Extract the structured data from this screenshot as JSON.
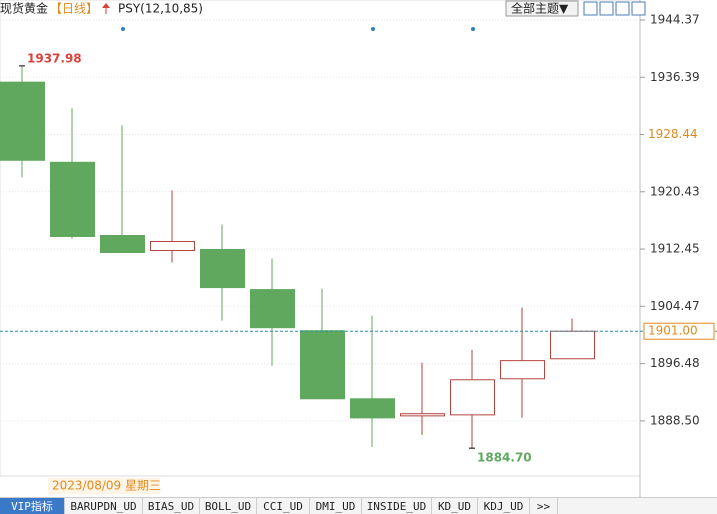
{
  "header": {
    "instrument": "现货黄金",
    "period": "【日线】",
    "indicator": "PSY(12,10,85)",
    "theme_button": "全部主题▼"
  },
  "chart_data": {
    "type": "candlestick",
    "categories": [
      null,
      null,
      null,
      null,
      null,
      null,
      null,
      null,
      null,
      null,
      null,
      null
    ],
    "open": [
      1935.71,
      1924.54,
      1914.34,
      1912.25,
      1912.39,
      1906.8,
      1901.07,
      1891.58,
      1889.2,
      1889.34,
      1894.37,
      1897.16
    ],
    "high": [
      1937.98,
      1932.08,
      1929.7,
      1920.63,
      1915.88,
      1911.13,
      1906.94,
      1903.17,
      1896.61,
      1898.42,
      1904.29,
      1902.75
    ],
    "low": [
      1922.44,
      1913.92,
      1911.97,
      1910.57,
      1902.47,
      1896.19,
      1891.58,
      1884.87,
      1886.55,
      1884.7,
      1888.92,
      1897.16
    ],
    "close": [
      1924.82,
      1914.2,
      1911.97,
      1913.5,
      1907.08,
      1901.49,
      1891.58,
      1888.92,
      1889.5,
      1894.23,
      1896.9,
      1901.0
    ],
    "up_color": "#b5453f",
    "down_color": "#5fa85e",
    "ylim": [
      1880.82,
      1947.16
    ],
    "yticks": [
      {
        "value": 1888.5,
        "label": "1888.50"
      },
      1896.48,
      1904.47,
      1912.45,
      1920.43,
      1928.41,
      1936.39,
      1944.37
    ],
    "grid": true,
    "annotations": [
      {
        "value": 1937.98,
        "label": "1937.98",
        "color": "#d9413b"
      },
      {
        "value": 1884.7,
        "label": "1884.70",
        "color": "#5fa85e"
      }
    ],
    "price_markers": [
      {
        "value": 1928.44,
        "label": "1928.44"
      },
      {
        "value": 1901.0,
        "label": "1901.00"
      }
    ],
    "cursor_date": "2023/08/09 星期三"
  },
  "tabs": [
    "VIP指标",
    "BARUPDN_UD",
    "BIAS_UD",
    "BOLL_UD",
    "CCI_UD",
    "DMI_UD",
    "INSIDE_UD",
    "KD_UD",
    "KDJ_UD",
    ">>"
  ]
}
